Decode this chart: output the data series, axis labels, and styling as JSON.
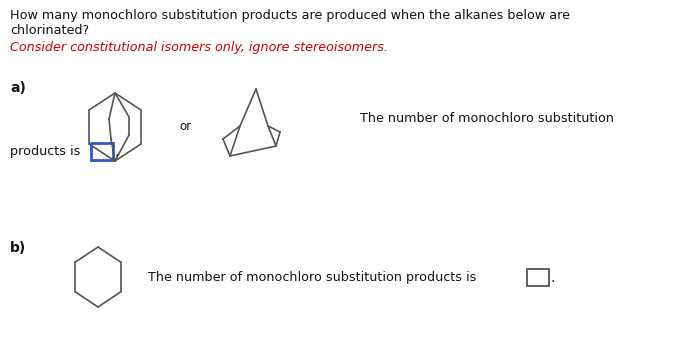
{
  "title_line1": "How many monochloro substitution products are produced when the alkanes below are",
  "title_line2": "chlorinated?",
  "subtitle": "Consider constitutional isomers only, ignore stereoisomers.",
  "subtitle_color": "#cc0000",
  "label_a": "a)",
  "label_b": "b)",
  "text_a_line1": "The number of monochloro substitution",
  "text_a_line2": "products is",
  "text_b": "The number of monochloro substitution products is",
  "bg_color": "#ffffff",
  "structure_color": "#555555",
  "box_color_a": "#3355cc",
  "box_color_b": "#555555",
  "or_text": "or"
}
